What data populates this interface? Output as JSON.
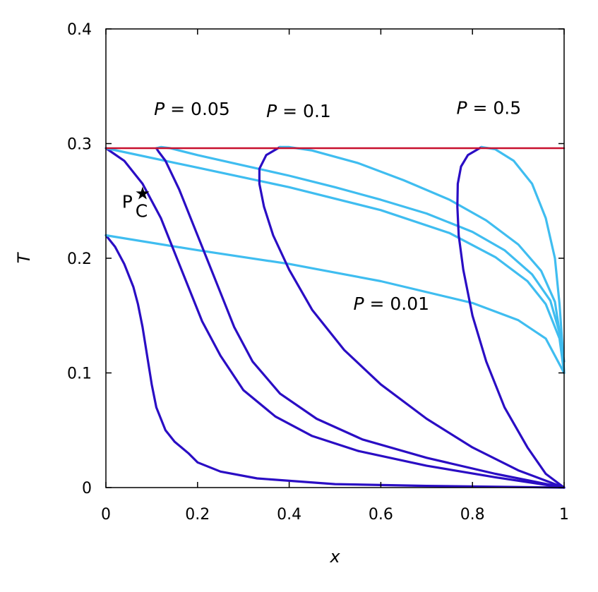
{
  "chart_data": {
    "type": "line",
    "xlabel": "x",
    "ylabel": "T",
    "xlim": [
      0,
      1
    ],
    "ylim": [
      0,
      0.4
    ],
    "xticks": [
      0,
      0.2,
      0.4,
      0.6,
      0.8,
      1
    ],
    "yticks": [
      0,
      0.1,
      0.2,
      0.3,
      0.4
    ],
    "xtick_labels": [
      "0",
      "0.2",
      "0.4",
      "0.6",
      "0.8",
      "1"
    ],
    "ytick_labels": [
      "0",
      "0.1",
      "0.2",
      "0.3",
      "0.4"
    ],
    "grid": false,
    "colors": {
      "liquid": "#2a0dc4",
      "vapor": "#3fbdf0",
      "critical": "#c8102e"
    },
    "series": [
      {
        "group": "liquid",
        "x": [
          0,
          0.02,
          0.04,
          0.06,
          0.07,
          0.08,
          0.09,
          0.1,
          0.11,
          0.13,
          0.15,
          0.18,
          0.2,
          0.25,
          0.33,
          0.5,
          0.7,
          0.9,
          1.0
        ],
        "y": [
          0.22,
          0.21,
          0.195,
          0.175,
          0.16,
          0.14,
          0.115,
          0.09,
          0.07,
          0.05,
          0.04,
          0.03,
          0.022,
          0.014,
          0.008,
          0.003,
          0.0015,
          0.0005,
          0
        ]
      },
      {
        "group": "vapor",
        "x": [
          0,
          0.2,
          0.4,
          0.6,
          0.8,
          0.9,
          0.96,
          1.0
        ],
        "y": [
          0.22,
          0.207,
          0.195,
          0.18,
          0.161,
          0.146,
          0.13,
          0.1
        ]
      },
      {
        "group": "liquid",
        "x": [
          0,
          0.04,
          0.08,
          0.12,
          0.15,
          0.18,
          0.21,
          0.25,
          0.3,
          0.37,
          0.45,
          0.55,
          0.7,
          0.85,
          1.0
        ],
        "y": [
          0.296,
          0.285,
          0.265,
          0.235,
          0.205,
          0.175,
          0.145,
          0.115,
          0.085,
          0.062,
          0.045,
          0.032,
          0.019,
          0.009,
          0
        ]
      },
      {
        "group": "vapor",
        "x": [
          0,
          0.2,
          0.4,
          0.6,
          0.75,
          0.85,
          0.92,
          0.96,
          0.99,
          1.0
        ],
        "y": [
          0.296,
          0.279,
          0.262,
          0.242,
          0.222,
          0.201,
          0.18,
          0.16,
          0.13,
          0.1
        ]
      },
      {
        "group": "liquid",
        "x": [
          0.11,
          0.115,
          0.13,
          0.16,
          0.19,
          0.22,
          0.25,
          0.28,
          0.32,
          0.38,
          0.46,
          0.56,
          0.7,
          0.85,
          1.0
        ],
        "y": [
          0.296,
          0.293,
          0.285,
          0.26,
          0.23,
          0.2,
          0.17,
          0.14,
          0.11,
          0.082,
          0.06,
          0.042,
          0.026,
          0.012,
          0
        ]
      },
      {
        "group": "vapor",
        "x": [
          0.11,
          0.12,
          0.14,
          0.2,
          0.3,
          0.4,
          0.5,
          0.6,
          0.7,
          0.8,
          0.87,
          0.93,
          0.97,
          0.99,
          1.0
        ],
        "y": [
          0.296,
          0.297,
          0.296,
          0.29,
          0.281,
          0.272,
          0.262,
          0.251,
          0.239,
          0.223,
          0.207,
          0.186,
          0.163,
          0.135,
          0.1
        ]
      },
      {
        "group": "liquid",
        "x": [
          0.38,
          0.35,
          0.335,
          0.335,
          0.345,
          0.365,
          0.4,
          0.45,
          0.52,
          0.6,
          0.7,
          0.8,
          0.9,
          1.0
        ],
        "y": [
          0.297,
          0.29,
          0.278,
          0.265,
          0.245,
          0.22,
          0.19,
          0.155,
          0.12,
          0.09,
          0.06,
          0.035,
          0.015,
          0
        ]
      },
      {
        "group": "vapor",
        "x": [
          0.38,
          0.4,
          0.45,
          0.55,
          0.65,
          0.75,
          0.83,
          0.9,
          0.95,
          0.98,
          1.0
        ],
        "y": [
          0.297,
          0.297,
          0.294,
          0.283,
          0.268,
          0.251,
          0.233,
          0.212,
          0.189,
          0.162,
          0.11
        ]
      },
      {
        "group": "liquid",
        "x": [
          0.82,
          0.79,
          0.775,
          0.768,
          0.767,
          0.77,
          0.78,
          0.8,
          0.83,
          0.87,
          0.92,
          0.96,
          0.99,
          1.0
        ],
        "y": [
          0.297,
          0.29,
          0.28,
          0.265,
          0.245,
          0.22,
          0.19,
          0.15,
          0.11,
          0.07,
          0.035,
          0.012,
          0.003,
          0
        ]
      },
      {
        "group": "vapor",
        "x": [
          0.82,
          0.85,
          0.89,
          0.93,
          0.96,
          0.98,
          0.99,
          0.997,
          1.0
        ],
        "y": [
          0.297,
          0.295,
          0.285,
          0.265,
          0.235,
          0.2,
          0.16,
          0.12,
          0.1
        ]
      },
      {
        "group": "critical",
        "x": [
          0,
          1
        ],
        "y": [
          0.296,
          0.296
        ]
      }
    ],
    "annotations": [
      {
        "var": "P",
        "text": " = 0.05",
        "x": 0.105,
        "y": 0.325
      },
      {
        "var": "P",
        "text": " = 0.1",
        "x": 0.35,
        "y": 0.323
      },
      {
        "var": "P",
        "text": " = 0.5",
        "x": 0.765,
        "y": 0.326
      },
      {
        "var": "P",
        "text": " = 0.01",
        "x": 0.54,
        "y": 0.155
      }
    ],
    "critical_label": {
      "var": "P",
      "sup": "★",
      "sub": "C",
      "x": 0.035,
      "y": 0.244
    }
  }
}
